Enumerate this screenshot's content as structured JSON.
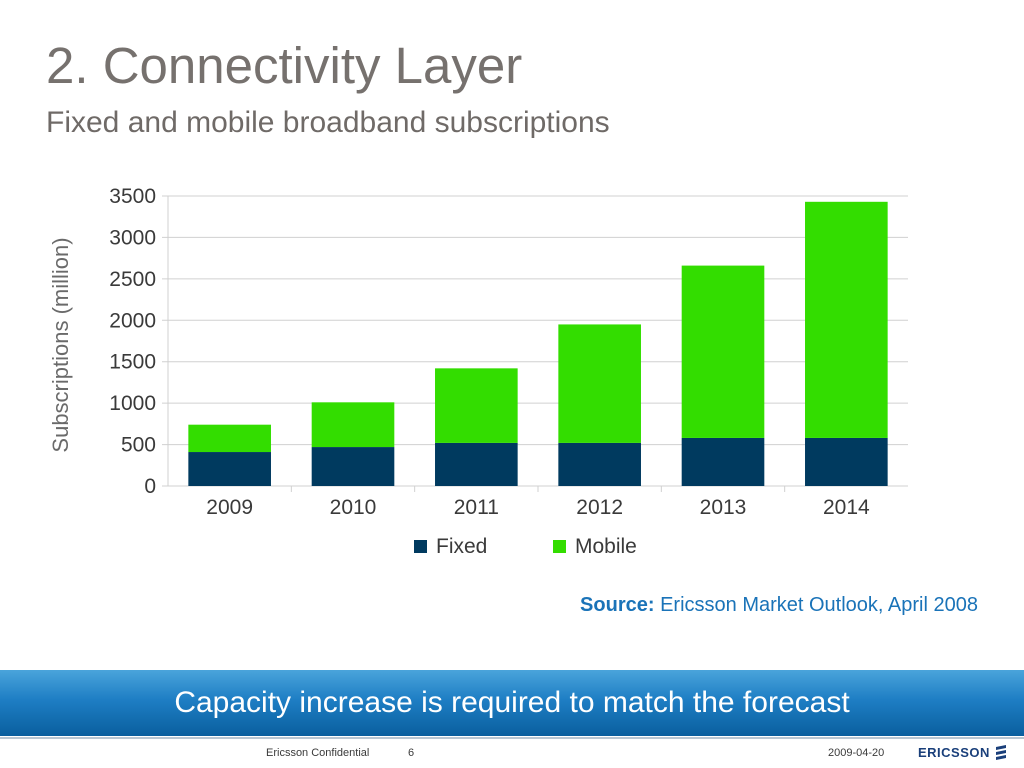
{
  "slide": {
    "title": "2. Connectivity Layer",
    "subtitle": "Fixed and mobile broadband subscriptions"
  },
  "chart_data": {
    "type": "bar",
    "stacked": true,
    "categories": [
      "2009",
      "2010",
      "2011",
      "2012",
      "2013",
      "2014"
    ],
    "series": [
      {
        "name": "Fixed",
        "color": "#003a5f",
        "values": [
          410,
          470,
          520,
          520,
          580,
          580
        ]
      },
      {
        "name": "Mobile",
        "color": "#33dd00",
        "values": [
          330,
          540,
          900,
          1430,
          2080,
          2850
        ]
      }
    ],
    "ylabel": "Subscriptions (million)",
    "xlabel": "",
    "ylim": [
      0,
      3500
    ],
    "yticks": [
      0,
      500,
      1000,
      1500,
      2000,
      2500,
      3000,
      3500
    ],
    "grid": true,
    "legend_position": "bottom"
  },
  "source": {
    "lead": "Source:",
    "text": " Ericsson Market Outlook, April 2008"
  },
  "banner": {
    "text": "Capacity increase is required to match the forecast"
  },
  "footer": {
    "confidential": "Ericsson Confidential",
    "page": "6",
    "date": "2009-04-20",
    "logo": "ERICSSON"
  }
}
